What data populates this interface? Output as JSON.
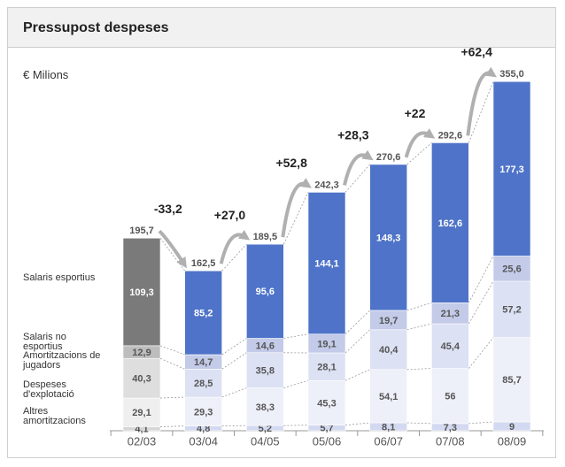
{
  "chart_data": {
    "type": "stacked_bar",
    "title": "Pressupost despeses",
    "unit_label": "€ Milions",
    "categories": [
      "02/03",
      "03/04",
      "04/05",
      "05/06",
      "06/07",
      "07/08",
      "08/09"
    ],
    "ylim": [
      0,
      355
    ],
    "series": [
      {
        "name": "Altres amortitzacions",
        "color": "#d3d9f0",
        "first_category_color": "#d6d6d6",
        "label_color": "#555555",
        "values": [
          4.1,
          4.8,
          5.2,
          5.7,
          8.1,
          7.3,
          9
        ],
        "value_labels": [
          "4,1",
          "4,8",
          "5,2",
          "5,7",
          "8,1",
          "7,3",
          "9"
        ]
      },
      {
        "name": "Despeses d'explotació",
        "color": "#eef0f9",
        "first_category_color": "#efefef",
        "label_color": "#555555",
        "values": [
          29.1,
          29.3,
          38.3,
          45.3,
          54.1,
          56,
          85.7
        ],
        "value_labels": [
          "29,1",
          "29,3",
          "38,3",
          "45,3",
          "54,1",
          "56",
          "85,7"
        ]
      },
      {
        "name": "Amortitzacions de jugadors",
        "color": "#dce1f3",
        "first_category_color": "#dedede",
        "label_color": "#555555",
        "values": [
          40.3,
          28.5,
          35.8,
          28.1,
          40.4,
          45.4,
          57.2
        ],
        "value_labels": [
          "40,3",
          "28,5",
          "35,8",
          "28,1",
          "40,4",
          "45,4",
          "57,2"
        ]
      },
      {
        "name": "Salaris no esportius",
        "color": "#c3cbe9",
        "first_category_color": "#bdbdbd",
        "label_color": "#555555",
        "values": [
          12.9,
          14.7,
          14.6,
          19.1,
          19.7,
          21.3,
          25.6
        ],
        "value_labels": [
          "12,9",
          "14,7",
          "14,6",
          "19,1",
          "19,7",
          "21,3",
          "25,6"
        ]
      },
      {
        "name": "Salaris esportius",
        "color": "#4e73c8",
        "first_category_color": "#7a7a7a",
        "label_color": "#ffffff",
        "values": [
          109.3,
          85.2,
          95.6,
          144.1,
          148.3,
          162.6,
          177.3
        ],
        "value_labels": [
          "109,3",
          "85,2",
          "95,6",
          "144,1",
          "148,3",
          "162,6",
          "177,3"
        ]
      }
    ],
    "totals": {
      "values": [
        195.7,
        162.5,
        189.5,
        242.3,
        270.6,
        292.6,
        355.0
      ],
      "value_labels": [
        "195,7",
        "162,5",
        "189,5",
        "242,3",
        "270,6",
        "292,6",
        "355,0"
      ]
    },
    "changes": {
      "values": [
        -33.2,
        27.0,
        52.8,
        28.3,
        22,
        62.4
      ],
      "value_labels": [
        "-33,2",
        "+27,0",
        "+52,8",
        "+28,3",
        "+22",
        "+62,4"
      ]
    }
  }
}
